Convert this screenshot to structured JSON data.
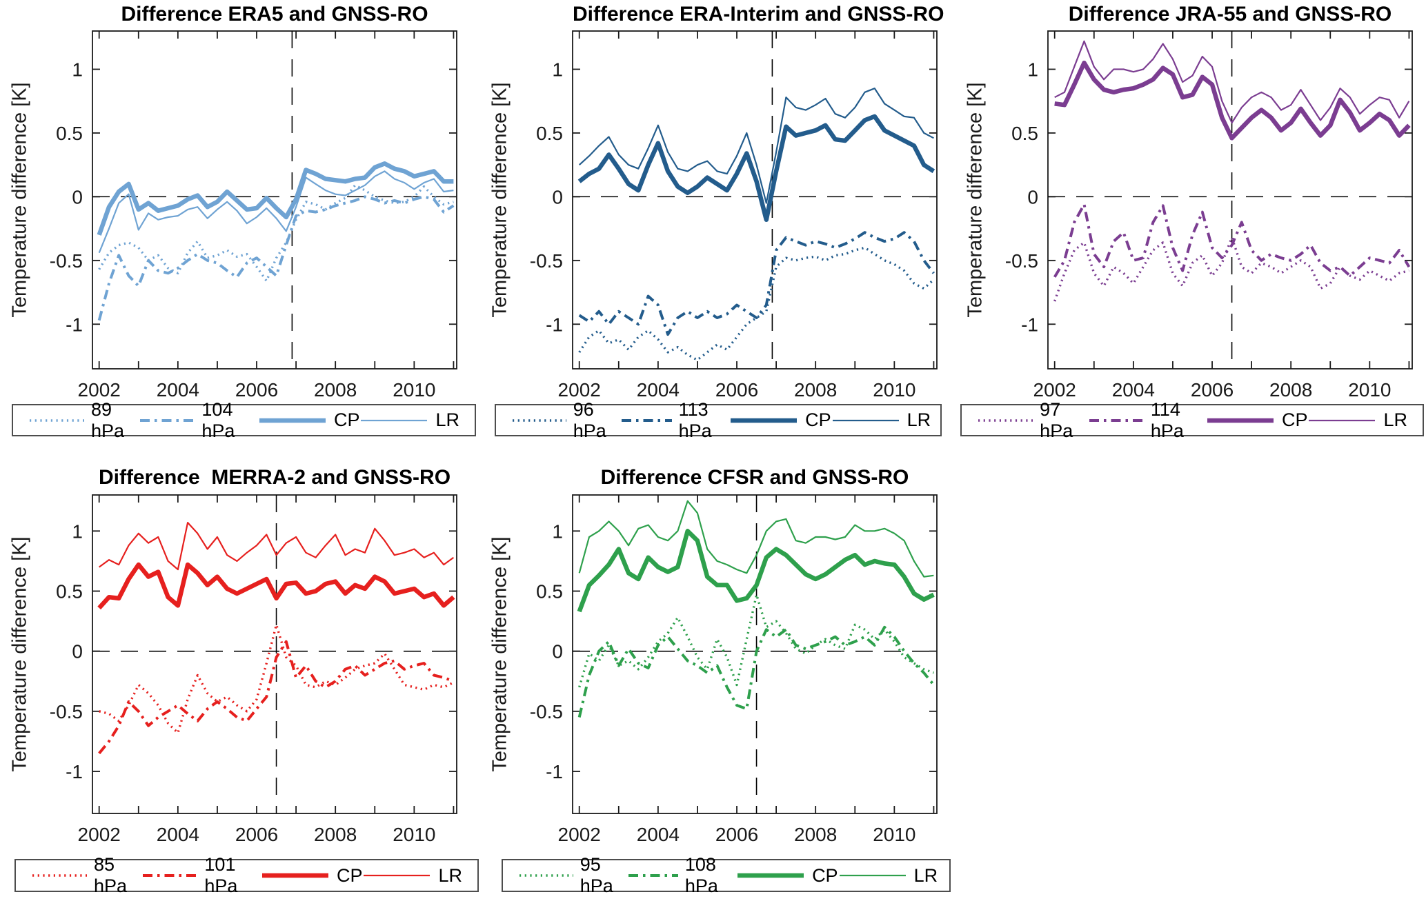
{
  "figure": {
    "ylabel": "Temperature difference [K]",
    "xlim": [
      2001.83,
      2011.08
    ],
    "ylim": [
      -1.35,
      1.3
    ],
    "x_major_ticks": [
      2002,
      2004,
      2006,
      2008,
      2010
    ],
    "x_minor_ticks": [
      2002,
      2003,
      2004,
      2005,
      2006,
      2007,
      2008,
      2009,
      2010,
      2011
    ],
    "x_tick_labels": [
      "2002",
      "2004",
      "2006",
      "2008",
      "2010"
    ],
    "y_ticks": [
      1,
      0.5,
      0,
      -0.5,
      -1
    ],
    "y_tick_labels": [
      "1",
      "0.5",
      "0",
      "-0.5",
      "-1"
    ],
    "axis_color": "#1a1a1a",
    "dashed_line_color": "#000000",
    "series_styles": [
      "dotted",
      "dashdot",
      "thick",
      "thin"
    ]
  },
  "chart_data": [
    {
      "type": "line",
      "title": "Difference ERA5 and GNSS-RO",
      "color": "#6FA3D3",
      "vline_x": 2006.9,
      "hline_y": 0,
      "x_start": 2002.0,
      "x_step": 0.25,
      "legend": [
        "89 hPa",
        "104 hPa",
        "CP",
        "LR"
      ],
      "series": [
        {
          "name": "89 hPa",
          "style": "dotted",
          "y": [
            -0.57,
            -0.44,
            -0.38,
            -0.36,
            -0.4,
            -0.5,
            -0.46,
            -0.56,
            -0.6,
            -0.44,
            -0.35,
            -0.48,
            -0.46,
            -0.42,
            -0.47,
            -0.45,
            -0.55,
            -0.66,
            -0.48,
            -0.36,
            -0.18,
            -0.04,
            -0.06,
            -0.1,
            -0.05,
            -0.01,
            0.09,
            0.05,
            0.0,
            -0.03,
            -0.05,
            -0.04,
            0.0,
            0.08,
            0.0,
            -0.06,
            -0.04
          ]
        },
        {
          "name": "104 hPa",
          "style": "dashdot",
          "y": [
            -0.97,
            -0.68,
            -0.46,
            -0.62,
            -0.7,
            -0.5,
            -0.58,
            -0.6,
            -0.56,
            -0.5,
            -0.45,
            -0.5,
            -0.52,
            -0.58,
            -0.63,
            -0.52,
            -0.48,
            -0.55,
            -0.62,
            -0.38,
            -0.15,
            -0.11,
            -0.12,
            -0.1,
            -0.07,
            -0.05,
            -0.03,
            0.0,
            -0.02,
            -0.05,
            -0.03,
            -0.05,
            -0.02,
            0.0,
            -0.02,
            -0.12,
            -0.07
          ]
        },
        {
          "name": "CP",
          "style": "thick",
          "y": [
            -0.3,
            -0.08,
            0.04,
            0.1,
            -0.1,
            -0.05,
            -0.11,
            -0.09,
            -0.07,
            -0.02,
            0.01,
            -0.08,
            -0.04,
            0.04,
            -0.03,
            -0.1,
            -0.09,
            -0.01,
            -0.09,
            -0.16,
            -0.02,
            0.21,
            0.18,
            0.14,
            0.13,
            0.12,
            0.14,
            0.15,
            0.23,
            0.26,
            0.22,
            0.2,
            0.16,
            0.18,
            0.2,
            0.12,
            0.12
          ]
        },
        {
          "name": "LR",
          "style": "thin",
          "y": [
            -0.44,
            -0.25,
            -0.05,
            0.02,
            -0.26,
            -0.13,
            -0.18,
            -0.16,
            -0.15,
            -0.1,
            -0.08,
            -0.17,
            -0.1,
            -0.04,
            -0.11,
            -0.21,
            -0.16,
            -0.09,
            -0.17,
            -0.27,
            -0.08,
            0.15,
            0.1,
            0.05,
            0.02,
            0.01,
            0.05,
            0.09,
            0.16,
            0.2,
            0.14,
            0.11,
            0.06,
            0.11,
            0.14,
            0.04,
            0.05
          ]
        }
      ]
    },
    {
      "type": "line",
      "title": "Difference ERA-Interim and GNSS-RO",
      "color": "#235C8C",
      "vline_x": 2006.9,
      "hline_y": 0,
      "x_start": 2002.0,
      "x_step": 0.25,
      "legend": [
        "96 hPa",
        "113 hPa",
        "CP",
        "LR"
      ],
      "series": [
        {
          "name": "96 hPa",
          "style": "dotted",
          "y": [
            -1.22,
            -1.1,
            -1.05,
            -1.15,
            -1.12,
            -1.2,
            -1.1,
            -1.05,
            -1.12,
            -1.22,
            -1.18,
            -1.24,
            -1.28,
            -1.22,
            -1.16,
            -1.2,
            -1.1,
            -1.0,
            -0.95,
            -0.9,
            -0.55,
            -0.48,
            -0.5,
            -0.48,
            -0.47,
            -0.5,
            -0.46,
            -0.45,
            -0.42,
            -0.4,
            -0.45,
            -0.5,
            -0.53,
            -0.58,
            -0.68,
            -0.72,
            -0.65
          ]
        },
        {
          "name": "113 hPa",
          "style": "dashdot",
          "y": [
            -0.93,
            -0.98,
            -0.9,
            -1.0,
            -0.9,
            -0.95,
            -1.0,
            -0.78,
            -0.85,
            -1.08,
            -0.95,
            -0.9,
            -0.95,
            -0.9,
            -0.95,
            -0.92,
            -0.85,
            -0.9,
            -0.95,
            -0.85,
            -0.42,
            -0.32,
            -0.35,
            -0.38,
            -0.35,
            -0.37,
            -0.4,
            -0.37,
            -0.33,
            -0.28,
            -0.32,
            -0.35,
            -0.33,
            -0.28,
            -0.35,
            -0.5,
            -0.6
          ]
        },
        {
          "name": "CP",
          "style": "thick",
          "y": [
            0.12,
            0.18,
            0.22,
            0.33,
            0.22,
            0.1,
            0.05,
            0.25,
            0.42,
            0.2,
            0.08,
            0.03,
            0.08,
            0.15,
            0.1,
            0.05,
            0.18,
            0.34,
            0.12,
            -0.18,
            0.2,
            0.55,
            0.48,
            0.5,
            0.52,
            0.56,
            0.45,
            0.44,
            0.52,
            0.6,
            0.63,
            0.52,
            0.48,
            0.44,
            0.4,
            0.25,
            0.2
          ]
        },
        {
          "name": "LR",
          "style": "thin",
          "y": [
            0.25,
            0.32,
            0.4,
            0.47,
            0.33,
            0.25,
            0.22,
            0.38,
            0.56,
            0.35,
            0.22,
            0.2,
            0.25,
            0.28,
            0.2,
            0.18,
            0.32,
            0.5,
            0.25,
            -0.05,
            0.35,
            0.78,
            0.7,
            0.68,
            0.72,
            0.77,
            0.65,
            0.62,
            0.7,
            0.82,
            0.85,
            0.73,
            0.68,
            0.63,
            0.62,
            0.5,
            0.46
          ]
        }
      ]
    },
    {
      "type": "line",
      "title": "Difference JRA-55 and GNSS-RO",
      "color": "#7B3D91",
      "vline_x": 2006.5,
      "hline_y": 0,
      "x_start": 2002.0,
      "x_step": 0.25,
      "legend": [
        "97 hPa",
        "114 hPa",
        "CP",
        "LR"
      ],
      "series": [
        {
          "name": "97 hPa",
          "style": "dotted",
          "y": [
            -0.82,
            -0.6,
            -0.42,
            -0.36,
            -0.6,
            -0.7,
            -0.55,
            -0.6,
            -0.68,
            -0.55,
            -0.42,
            -0.36,
            -0.6,
            -0.7,
            -0.52,
            -0.46,
            -0.62,
            -0.52,
            -0.32,
            -0.55,
            -0.6,
            -0.52,
            -0.55,
            -0.6,
            -0.55,
            -0.5,
            -0.55,
            -0.72,
            -0.68,
            -0.55,
            -0.62,
            -0.65,
            -0.58,
            -0.62,
            -0.66,
            -0.6,
            -0.58
          ]
        },
        {
          "name": "114 hPa",
          "style": "dashdot",
          "y": [
            -0.63,
            -0.5,
            -0.2,
            -0.06,
            -0.45,
            -0.55,
            -0.35,
            -0.28,
            -0.5,
            -0.48,
            -0.2,
            -0.07,
            -0.4,
            -0.58,
            -0.3,
            -0.12,
            -0.4,
            -0.48,
            -0.38,
            -0.2,
            -0.42,
            -0.5,
            -0.45,
            -0.48,
            -0.5,
            -0.45,
            -0.38,
            -0.52,
            -0.58,
            -0.55,
            -0.62,
            -0.55,
            -0.48,
            -0.5,
            -0.52,
            -0.42,
            -0.55
          ]
        },
        {
          "name": "CP",
          "style": "thick",
          "y": [
            0.73,
            0.72,
            0.88,
            1.05,
            0.92,
            0.84,
            0.82,
            0.84,
            0.85,
            0.88,
            0.92,
            1.01,
            0.96,
            0.78,
            0.8,
            0.94,
            0.88,
            0.62,
            0.46,
            0.54,
            0.62,
            0.68,
            0.62,
            0.52,
            0.58,
            0.69,
            0.58,
            0.48,
            0.56,
            0.76,
            0.66,
            0.52,
            0.58,
            0.65,
            0.6,
            0.48,
            0.56
          ]
        },
        {
          "name": "LR",
          "style": "thin",
          "y": [
            0.78,
            0.82,
            1.02,
            1.22,
            1.02,
            0.92,
            1.0,
            1.0,
            0.98,
            1.0,
            1.08,
            1.2,
            1.08,
            0.9,
            0.95,
            1.1,
            1.02,
            0.75,
            0.58,
            0.7,
            0.78,
            0.82,
            0.78,
            0.68,
            0.72,
            0.84,
            0.72,
            0.6,
            0.7,
            0.85,
            0.78,
            0.65,
            0.72,
            0.78,
            0.76,
            0.62,
            0.75
          ]
        }
      ]
    },
    {
      "type": "line",
      "title": "Difference  MERRA-2 and GNSS-RO",
      "color": "#E6201E",
      "vline_x": 2006.5,
      "hline_y": 0,
      "x_start": 2002.0,
      "x_step": 0.25,
      "legend": [
        "85 hPa",
        "101 hPa",
        "CP",
        "LR"
      ],
      "series": [
        {
          "name": "85 hPa",
          "style": "dotted",
          "y": [
            -0.5,
            -0.52,
            -0.58,
            -0.45,
            -0.28,
            -0.35,
            -0.45,
            -0.6,
            -0.68,
            -0.4,
            -0.2,
            -0.35,
            -0.42,
            -0.38,
            -0.45,
            -0.5,
            -0.4,
            -0.1,
            0.22,
            -0.05,
            -0.12,
            -0.28,
            -0.3,
            -0.25,
            -0.28,
            -0.22,
            -0.15,
            -0.12,
            -0.1,
            -0.02,
            -0.15,
            -0.28,
            -0.3,
            -0.32,
            -0.28,
            -0.3,
            -0.26
          ]
        },
        {
          "name": "101 hPa",
          "style": "dashdot",
          "y": [
            -0.85,
            -0.75,
            -0.62,
            -0.42,
            -0.5,
            -0.62,
            -0.55,
            -0.5,
            -0.45,
            -0.52,
            -0.58,
            -0.48,
            -0.42,
            -0.48,
            -0.55,
            -0.58,
            -0.48,
            -0.38,
            -0.05,
            0.08,
            -0.22,
            -0.12,
            -0.25,
            -0.3,
            -0.25,
            -0.15,
            -0.12,
            -0.2,
            -0.15,
            -0.1,
            -0.08,
            -0.15,
            -0.12,
            -0.1,
            -0.2,
            -0.22,
            -0.25
          ]
        },
        {
          "name": "CP",
          "style": "thick",
          "y": [
            0.36,
            0.45,
            0.44,
            0.6,
            0.72,
            0.62,
            0.66,
            0.45,
            0.38,
            0.72,
            0.65,
            0.55,
            0.62,
            0.52,
            0.48,
            0.52,
            0.56,
            0.6,
            0.44,
            0.56,
            0.57,
            0.48,
            0.5,
            0.56,
            0.58,
            0.48,
            0.55,
            0.52,
            0.62,
            0.58,
            0.48,
            0.5,
            0.52,
            0.45,
            0.48,
            0.38,
            0.45
          ]
        },
        {
          "name": "LR",
          "style": "thin",
          "y": [
            0.7,
            0.76,
            0.72,
            0.88,
            0.98,
            0.9,
            0.95,
            0.75,
            0.68,
            1.07,
            0.98,
            0.85,
            0.95,
            0.8,
            0.75,
            0.82,
            0.88,
            0.97,
            0.8,
            0.9,
            0.95,
            0.82,
            0.78,
            0.88,
            0.97,
            0.8,
            0.85,
            0.82,
            1.02,
            0.92,
            0.8,
            0.82,
            0.85,
            0.78,
            0.82,
            0.72,
            0.78
          ]
        }
      ]
    },
    {
      "type": "line",
      "title": "Difference CFSR and GNSS-RO",
      "color": "#2EA04C",
      "vline_x": 2006.5,
      "hline_y": 0,
      "x_start": 2002.0,
      "x_step": 0.25,
      "legend": [
        "95 hPa",
        "108 hPa",
        "CP",
        "LR"
      ],
      "series": [
        {
          "name": "95 hPa",
          "style": "dotted",
          "y": [
            -0.3,
            -0.02,
            -0.08,
            0.05,
            -0.12,
            -0.08,
            -0.15,
            -0.05,
            0.08,
            0.15,
            0.28,
            0.12,
            -0.05,
            -0.15,
            0.1,
            -0.05,
            -0.28,
            0.1,
            0.47,
            0.2,
            0.25,
            0.15,
            0.02,
            -0.02,
            0.05,
            0.1,
            0.05,
            0.02,
            0.22,
            0.18,
            0.1,
            0.18,
            0.08,
            -0.05,
            -0.1,
            -0.15,
            -0.18
          ]
        },
        {
          "name": "108 hPa",
          "style": "dashdot",
          "y": [
            -0.55,
            -0.2,
            0.0,
            0.08,
            -0.12,
            0.02,
            -0.1,
            -0.14,
            0.05,
            0.12,
            0.02,
            -0.08,
            -0.12,
            -0.18,
            -0.12,
            -0.3,
            -0.45,
            -0.48,
            0.0,
            0.18,
            0.12,
            0.18,
            0.05,
            0.02,
            0.05,
            0.08,
            0.12,
            0.05,
            0.08,
            0.12,
            0.05,
            0.2,
            0.12,
            0.0,
            -0.1,
            -0.18,
            -0.28
          ]
        },
        {
          "name": "CP",
          "style": "thick",
          "y": [
            0.33,
            0.55,
            0.63,
            0.72,
            0.85,
            0.65,
            0.6,
            0.78,
            0.7,
            0.66,
            0.7,
            1.0,
            0.92,
            0.62,
            0.55,
            0.55,
            0.42,
            0.44,
            0.55,
            0.78,
            0.85,
            0.8,
            0.72,
            0.64,
            0.6,
            0.64,
            0.7,
            0.76,
            0.8,
            0.72,
            0.75,
            0.73,
            0.72,
            0.62,
            0.48,
            0.43,
            0.47
          ]
        },
        {
          "name": "LR",
          "style": "thin",
          "y": [
            0.65,
            0.95,
            1.0,
            1.08,
            1.0,
            0.88,
            1.02,
            1.05,
            0.95,
            0.92,
            1.0,
            1.25,
            1.15,
            0.85,
            0.75,
            0.72,
            0.68,
            0.65,
            0.8,
            1.0,
            1.08,
            1.1,
            0.92,
            0.9,
            0.95,
            0.95,
            0.93,
            0.95,
            1.05,
            1.0,
            1.0,
            1.02,
            0.98,
            0.92,
            0.75,
            0.62,
            0.63
          ]
        }
      ]
    }
  ]
}
